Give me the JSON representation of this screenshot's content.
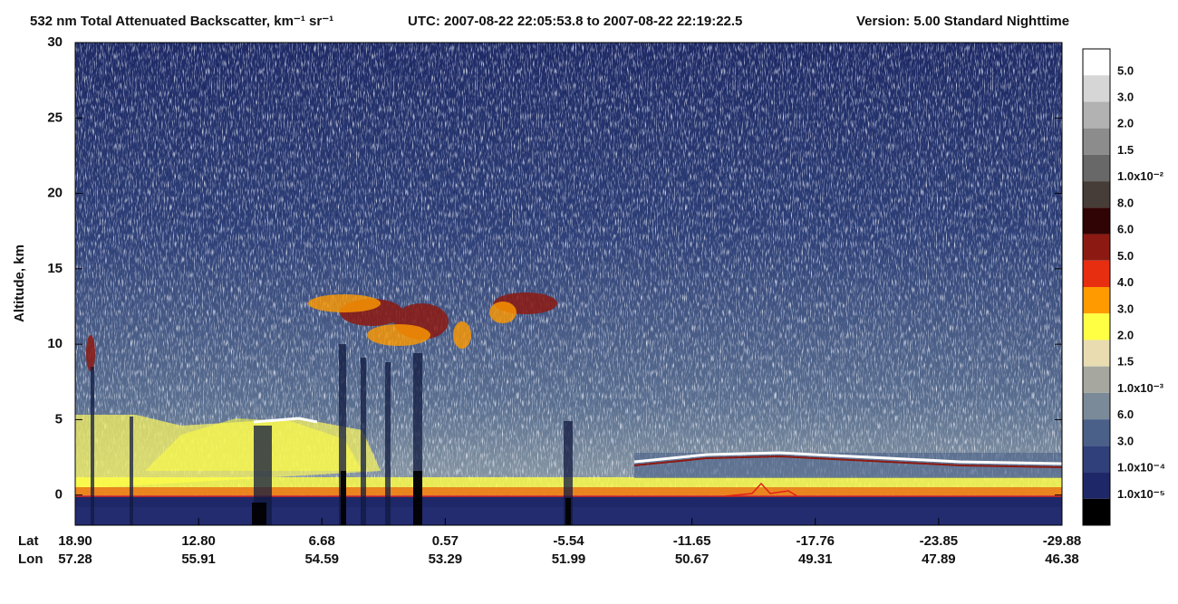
{
  "chart_data": {
    "type": "heatmap",
    "title": "532 nm Total Attenuated Backscatter, km⁻¹ sr⁻¹",
    "utc_range": "UTC:  2007-08-22 22:05:53.8  to  2007-08-22 22:19:22.5",
    "version": "Version: 5.00  Standard  Nighttime",
    "y_label": "Altitude, km",
    "ylim": [
      -2,
      30
    ],
    "yticks": [
      0,
      5,
      10,
      15,
      20,
      25,
      30
    ],
    "x_row_labels": [
      "Lat",
      "Lon"
    ],
    "lat": [
      "18.90",
      "12.80",
      "6.68",
      "0.57",
      "-5.54",
      "-11.65",
      "-17.76",
      "-23.85",
      "-29.88"
    ],
    "lon": [
      "57.28",
      "55.91",
      "54.59",
      "53.29",
      "51.99",
      "50.67",
      "49.31",
      "47.89",
      "46.38"
    ],
    "colorbar": {
      "labels": [
        "5.0",
        "3.0",
        "2.0",
        "1.5",
        "1.0x10⁻²",
        "8.0",
        "6.0",
        "5.0",
        "4.0",
        "3.0",
        "2.0",
        "1.5",
        "1.0x10⁻³",
        "6.0",
        "3.0",
        "1.0x10⁻⁴",
        "1.0x10⁻⁵"
      ],
      "colors": [
        "#ffffff",
        "#d6d6d6",
        "#b2b2b2",
        "#8c8c8c",
        "#686868",
        "#463c38",
        "#300404",
        "#8c1a12",
        "#e82e10",
        "#ff9a00",
        "#ffff44",
        "#e8dcb0",
        "#a6a8a0",
        "#7a8a98",
        "#4a6088",
        "#30407a",
        "#1e2868",
        "#000000"
      ]
    }
  }
}
